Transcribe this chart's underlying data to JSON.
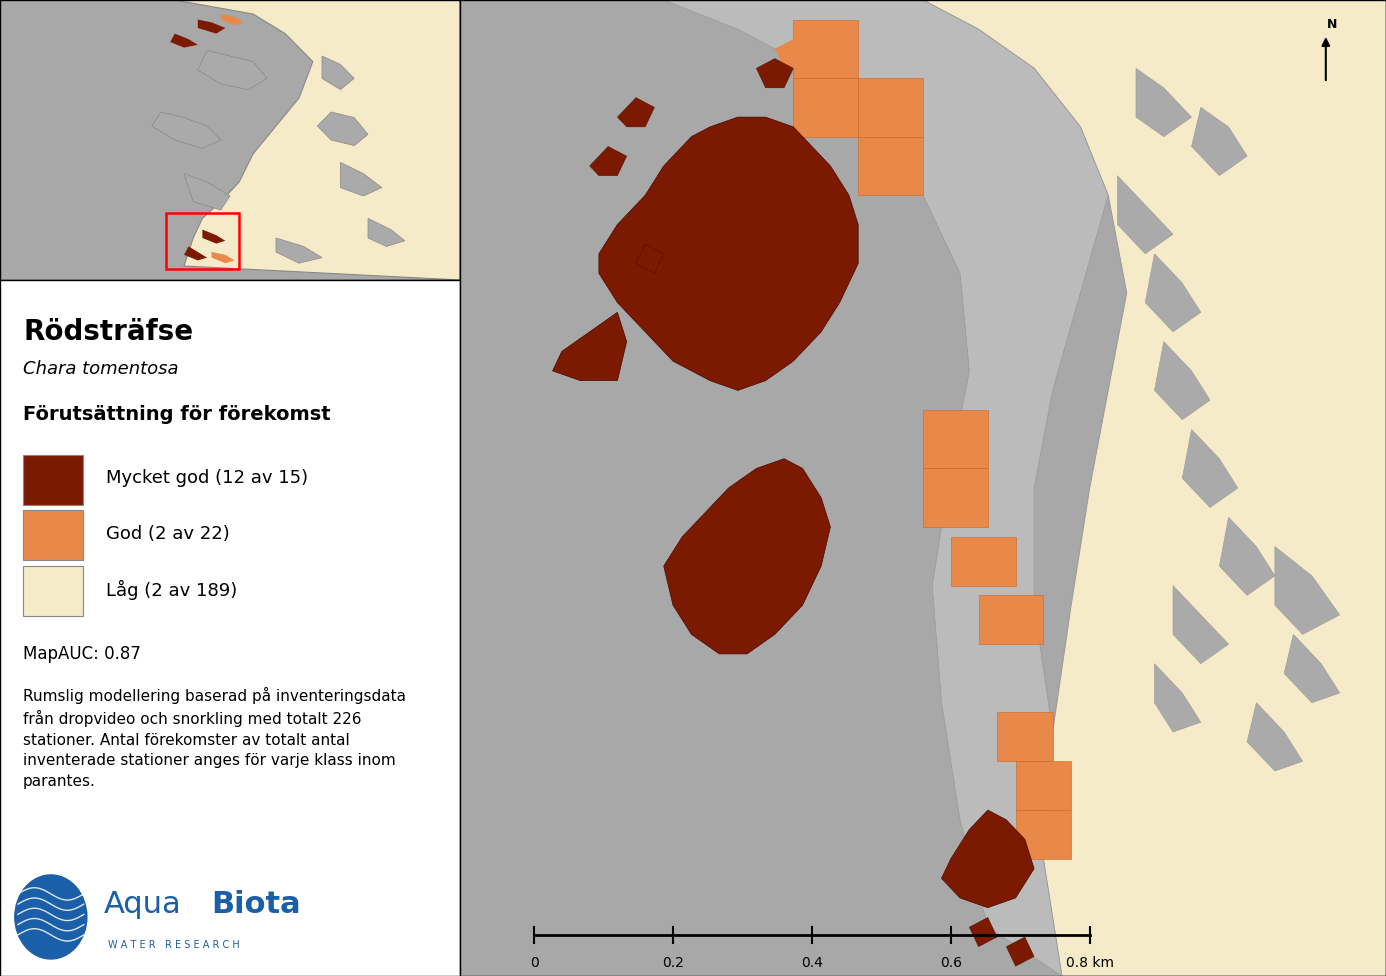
{
  "title": "Rödsträfse",
  "subtitle": "Chara tomentosa",
  "legend_title": "Förutsättning för förekomst",
  "legend_items": [
    {
      "label": "Mycket god (12 av 15)",
      "color": "#7B1A00"
    },
    {
      "label": "God (2 av 22)",
      "color": "#E8894A"
    },
    {
      "label": "Låg (2 av 189)",
      "color": "#F5EBC8"
    }
  ],
  "mapauc_text": "MapAUC: 0.87",
  "description_text": "Rumslig modellering baserad på inventeringsdata\nfrån dropvideo och snorkling med totalt 226\nstationer. Antal förekomster av totalt antal\ninventerade stationer anges för varje klass inom\nparantes.",
  "aquabiota_line1": "Aqua",
  "aquabiota_line2": "Biota",
  "aquabiota_sub": "W A T E R   R E S E A R C H",
  "scalebar_values": [
    "0",
    "0.2",
    "0.4",
    "0.6",
    "0.8 km"
  ],
  "north_label": "N",
  "bg_water_color": "#A8A8A8",
  "beige": "#F5EBC8",
  "dark_red": "#7B1A00",
  "orange": "#E8894A",
  "coast_gray": "#BBBBBB",
  "island_gray": "#AAAAAA"
}
